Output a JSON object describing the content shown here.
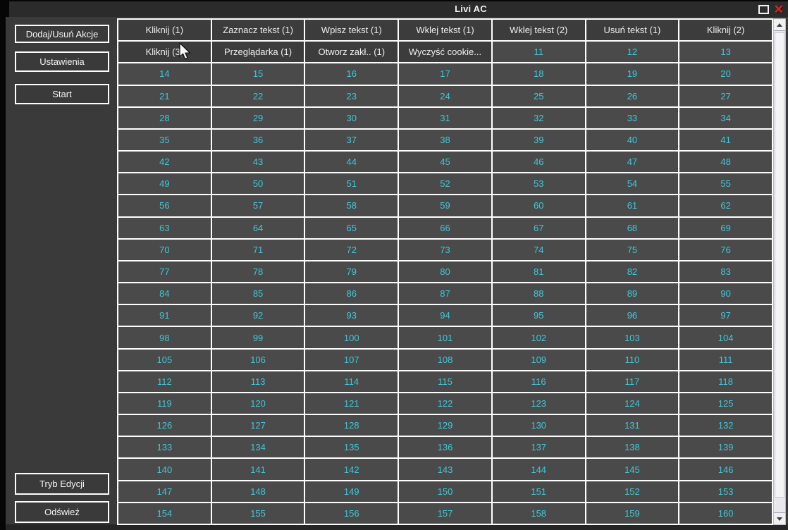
{
  "window": {
    "title": "Livi AC"
  },
  "titlebar": {
    "maximize_icon": "maximize",
    "close_icon": "close",
    "close_glyph": "✕"
  },
  "sidebar": {
    "top_buttons": [
      {
        "label": "Dodaj/Usuń Akcje"
      },
      {
        "label": "Ustawienia"
      },
      {
        "label": "Start"
      }
    ],
    "bottom_buttons": [
      {
        "label": "Tryb Edycji"
      },
      {
        "label": "Odśwież"
      }
    ]
  },
  "grid": {
    "columns": 7,
    "rows": [
      [
        "Kliknij (1)",
        "Zaznacz tekst (1)",
        "Wpisz tekst (1)",
        "Wklej tekst (1)",
        "Wklej tekst (2)",
        "Usuń tekst (1)",
        "Kliknij (2)"
      ],
      [
        "Kliknij (3)",
        "Przeglądarka (1)",
        "Otworz zakł.. (1)",
        "Wyczyść cookie...",
        "11",
        "12",
        "13"
      ],
      [
        "14",
        "15",
        "16",
        "17",
        "18",
        "19",
        "20"
      ],
      [
        "21",
        "22",
        "23",
        "24",
        "25",
        "26",
        "27"
      ],
      [
        "28",
        "29",
        "30",
        "31",
        "32",
        "33",
        "34"
      ],
      [
        "35",
        "36",
        "37",
        "38",
        "39",
        "40",
        "41"
      ],
      [
        "42",
        "43",
        "44",
        "45",
        "46",
        "47",
        "48"
      ],
      [
        "49",
        "50",
        "51",
        "52",
        "53",
        "54",
        "55"
      ],
      [
        "56",
        "57",
        "58",
        "59",
        "60",
        "61",
        "62"
      ],
      [
        "63",
        "64",
        "65",
        "66",
        "67",
        "68",
        "69"
      ],
      [
        "70",
        "71",
        "72",
        "73",
        "74",
        "75",
        "76"
      ],
      [
        "77",
        "78",
        "79",
        "80",
        "81",
        "82",
        "83"
      ],
      [
        "84",
        "85",
        "86",
        "87",
        "88",
        "89",
        "90"
      ],
      [
        "91",
        "92",
        "93",
        "94",
        "95",
        "96",
        "97"
      ],
      [
        "98",
        "99",
        "100",
        "101",
        "102",
        "103",
        "104"
      ],
      [
        "105",
        "106",
        "107",
        "108",
        "109",
        "110",
        "111"
      ],
      [
        "112",
        "113",
        "114",
        "115",
        "116",
        "117",
        "118"
      ],
      [
        "119",
        "120",
        "121",
        "122",
        "123",
        "124",
        "125"
      ],
      [
        "126",
        "127",
        "128",
        "129",
        "130",
        "131",
        "132"
      ],
      [
        "133",
        "134",
        "135",
        "136",
        "137",
        "138",
        "139"
      ],
      [
        "140",
        "141",
        "142",
        "143",
        "144",
        "145",
        "146"
      ],
      [
        "147",
        "148",
        "149",
        "150",
        "151",
        "152",
        "153"
      ],
      [
        "154",
        "155",
        "156",
        "157",
        "158",
        "159",
        "160"
      ]
    ]
  },
  "colors": {
    "accent_number": "#3fc8d8",
    "cell_action_bg": "#3c3c3c",
    "cell_number_bg": "#4a4a4a",
    "grid_border": "#ffffff",
    "titlebar_bg": "#2b2b2b",
    "client_bg": "#3a3a3a",
    "close_button": "#d42a20"
  }
}
